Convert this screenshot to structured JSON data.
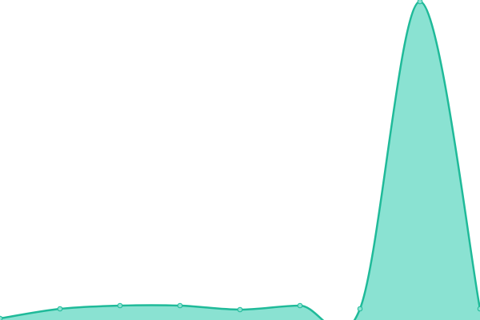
{
  "chart_data": {
    "type": "area",
    "categories": [
      null,
      null,
      null,
      null,
      null,
      null,
      null,
      null,
      null
    ],
    "series": [
      {
        "color": "#1fba99",
        "fill": "#8ae2d2",
        "values": [
          2,
          14,
          18,
          18,
          13,
          18,
          14,
          398,
          14
        ]
      }
    ],
    "ylim": [
      0,
      400
    ]
  }
}
